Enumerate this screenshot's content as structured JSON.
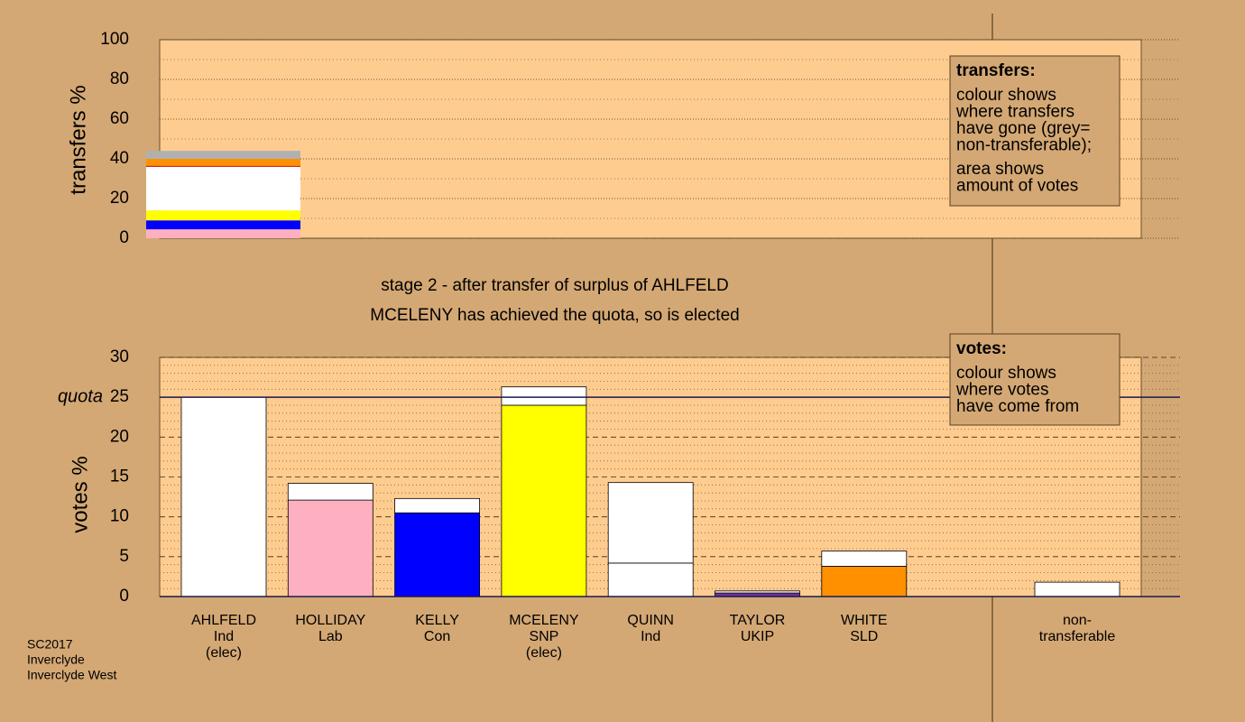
{
  "chart_data": [
    {
      "type": "stacked-bar",
      "ylabel": "transfers %",
      "ylim": [
        0,
        100
      ],
      "yticks": [
        0,
        20,
        40,
        60,
        80,
        100
      ],
      "grid": true,
      "colors": [
        "#ffb0c0",
        "#0000ff",
        "#ffff00",
        "#ffffff",
        "#cc0000",
        "#ff9000",
        "#b0b0b0"
      ],
      "values": [
        4.5,
        4.5,
        5,
        22,
        0.5,
        3.5,
        4
      ],
      "legend": {
        "title": "transfers:",
        "lines": [
          [
            "colour shows",
            "where transfers",
            "have gone (grey=",
            "non-transferable);"
          ],
          [
            "area shows",
            "amount of votes"
          ]
        ]
      }
    },
    {
      "type": "stacked-bar",
      "ylabel": "votes %",
      "ylim": [
        0,
        30
      ],
      "yticks": [
        0,
        5,
        10,
        15,
        20,
        25,
        30
      ],
      "grid": true,
      "quota": {
        "value": 25,
        "label": "quota"
      },
      "categories": [
        [
          "AHLFELD",
          "Ind",
          "(elec)"
        ],
        [
          "HOLLIDAY",
          "Lab"
        ],
        [
          "KELLY",
          "Con"
        ],
        [
          "MCELENY",
          "SNP",
          "(elec)"
        ],
        [
          "QUINN",
          "Ind"
        ],
        [
          "TAYLOR",
          "UKIP"
        ],
        [
          "WHITE",
          "SLD"
        ],
        [
          "non-",
          "transferable"
        ]
      ],
      "series": [
        {
          "colors": [
            "#ffffff",
            "#ffb0c0",
            "#0000ff",
            "#ffff00",
            "#ffffff",
            "#7030a0",
            "#ff9000",
            "#ffffff"
          ],
          "values": [
            25,
            12.1,
            10.5,
            24.0,
            4.2,
            0.45,
            3.8,
            0
          ]
        },
        {
          "color": "#ffffff",
          "values": [
            0,
            2.1,
            1.8,
            2.3,
            10.1,
            0.25,
            1.9,
            1.8
          ]
        }
      ],
      "legend": {
        "title": "votes:",
        "lines": [
          [
            "colour shows",
            "where votes",
            "have come from"
          ]
        ]
      }
    }
  ],
  "stage": [
    "stage 2 - after transfer of surplus of AHLFELD",
    "MCELENY has achieved the quota, so is elected"
  ],
  "footer": [
    "SC2017",
    "Inverclyde",
    "Inverclyde West"
  ]
}
